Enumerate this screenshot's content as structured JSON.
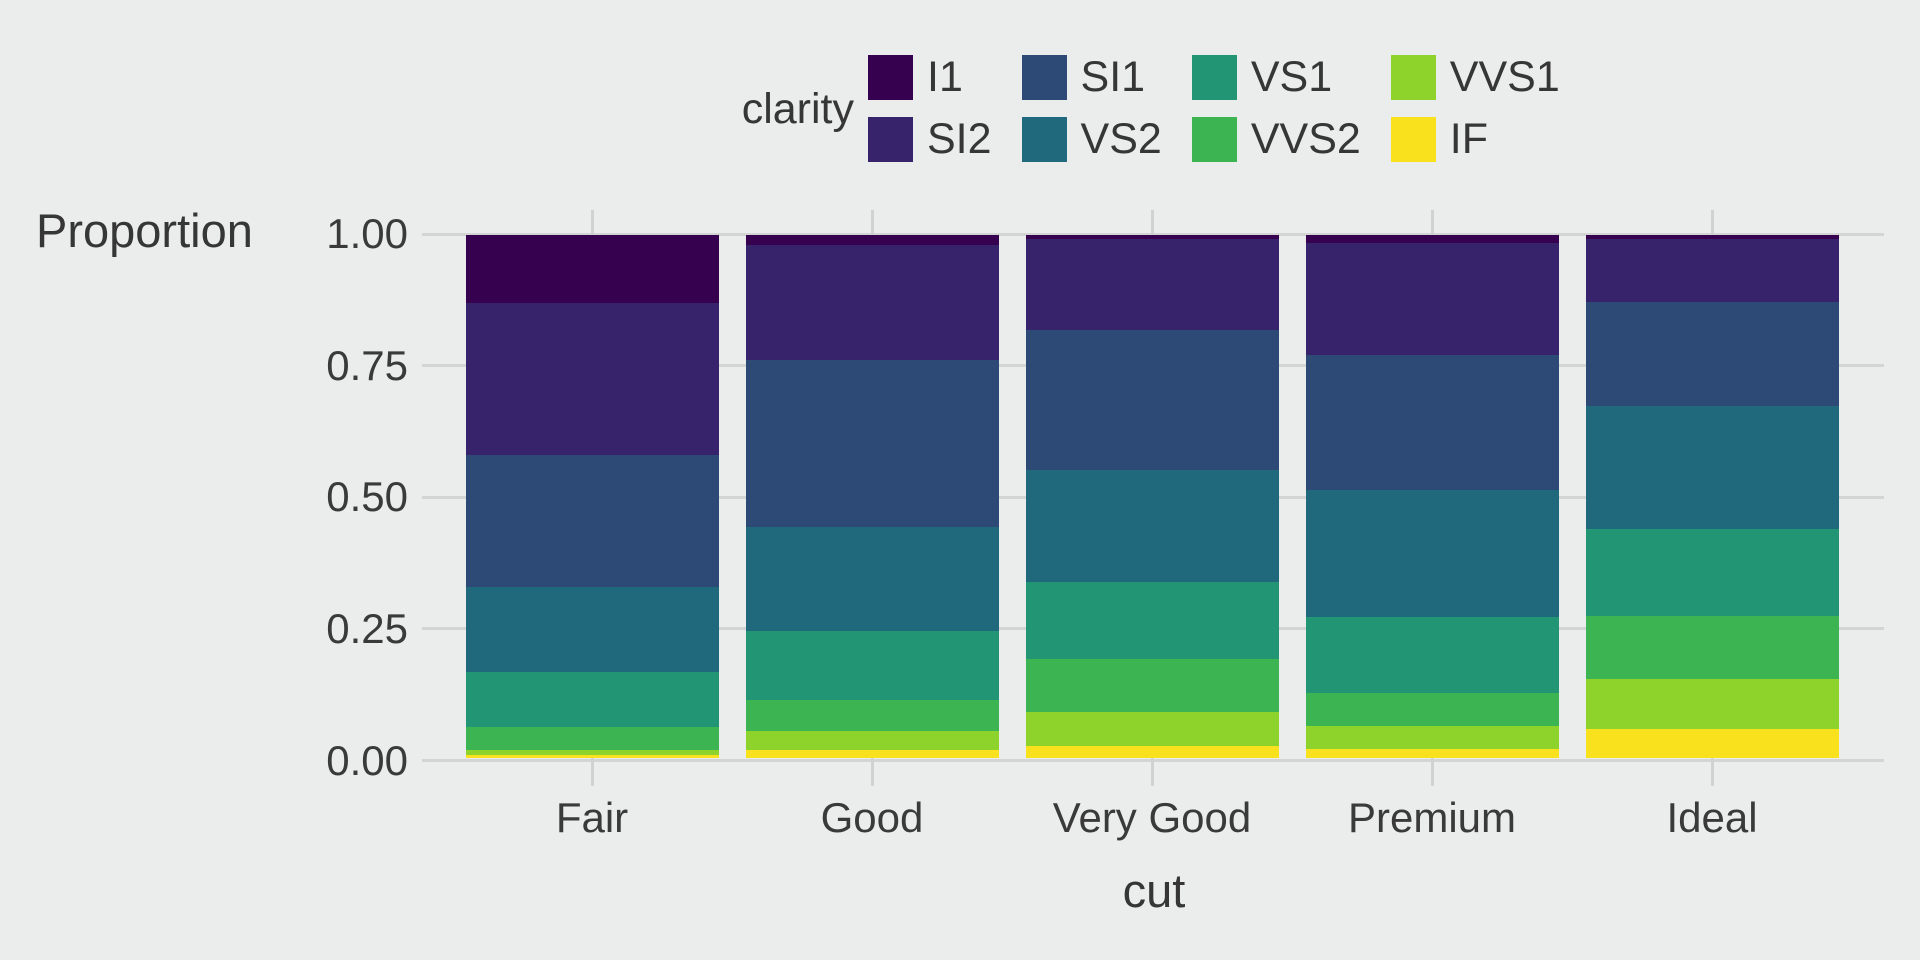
{
  "chart_data": {
    "type": "bar",
    "subtype": "stacked-proportion-100pct",
    "title": "",
    "xlabel": "cut",
    "ylabel": "Proportion",
    "categories": [
      "Fair",
      "Good",
      "Very Good",
      "Premium",
      "Ideal"
    ],
    "ylim": [
      0,
      1
    ],
    "grid": true,
    "y_ticks": [
      {
        "label": "1.00",
        "value": 1.0
      },
      {
        "label": "0.75",
        "value": 0.75
      },
      {
        "label": "0.50",
        "value": 0.5
      },
      {
        "label": "0.25",
        "value": 0.25
      },
      {
        "label": "0.00",
        "value": 0.0
      }
    ],
    "stack_order_top_to_bottom": [
      "I1",
      "SI2",
      "SI1",
      "VS2",
      "VS1",
      "VVS2",
      "VVS1",
      "IF"
    ],
    "series": [
      {
        "name": "I1",
        "color": "#36024F",
        "values": [
          0.1304,
          0.0196,
          0.007,
          0.0149,
          0.0068
        ]
      },
      {
        "name": "SI2",
        "color": "#37236B",
        "values": [
          0.2894,
          0.2203,
          0.1738,
          0.2138,
          0.1206
        ]
      },
      {
        "name": "SI1",
        "color": "#2C4A75",
        "values": [
          0.2534,
          0.318,
          0.2682,
          0.2592,
          0.1987
        ]
      },
      {
        "name": "VS2",
        "color": "#20697C",
        "values": [
          0.1621,
          0.1994,
          0.2144,
          0.2434,
          0.2353
        ]
      },
      {
        "name": "VS1",
        "color": "#219574",
        "values": [
          0.1056,
          0.1321,
          0.1469,
          0.1442,
          0.1665
        ]
      },
      {
        "name": "VVS2",
        "color": "#3CB452",
        "values": [
          0.0429,
          0.0583,
          0.1022,
          0.0631,
          0.1209
        ]
      },
      {
        "name": "VVS1",
        "color": "#8DD32C",
        "values": [
          0.0106,
          0.0379,
          0.0653,
          0.0447,
          0.095
        ]
      },
      {
        "name": "IF",
        "color": "#FAE11E",
        "values": [
          0.0056,
          0.0145,
          0.0222,
          0.0167,
          0.0562
        ]
      }
    ],
    "legend": {
      "title": "clarity",
      "position": "top",
      "rows": 2,
      "fill_order": "column",
      "row1": [
        "I1",
        "SI1",
        "VS1",
        "VVS1"
      ],
      "row2": [
        "SI2",
        "VS2",
        "VVS2",
        "IF"
      ]
    },
    "colors": {
      "background": "#EBECEC",
      "gridline": "#D3D4D4",
      "text": "#3A3A3A"
    }
  }
}
